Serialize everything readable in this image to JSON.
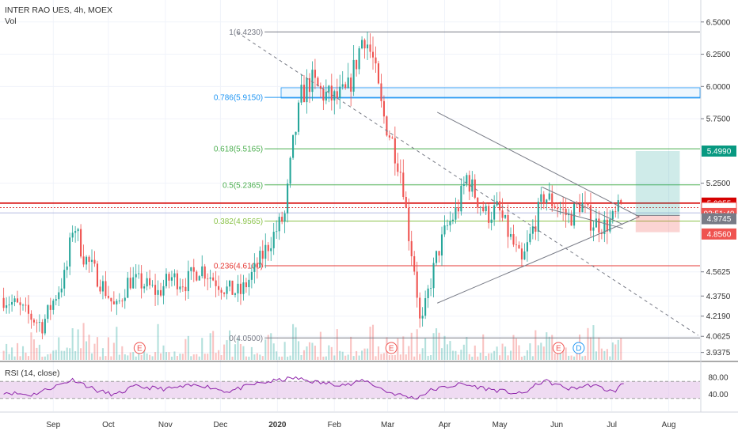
{
  "header": {
    "symbol_line": "INTER RAO UES, 4h, MOEX",
    "vol_label": "Vol"
  },
  "rsi": {
    "label": "RSI (14, close)"
  },
  "colors": {
    "up": "#26a69a",
    "down": "#ef5350",
    "rsi": "#8e24aa",
    "rsi_band": "#e1bee7",
    "grid": "#f0f3fa"
  },
  "chart_data": {
    "type": "candlestick",
    "y_axis": {
      "min": 3.88,
      "max": 6.56,
      "ticks": [
        "6.5000",
        "6.2500",
        "6.0000",
        "5.7500",
        "5.4990",
        "5.2500",
        "5.0955",
        "5.0570",
        "4.9745",
        "4.8560",
        "4.5625",
        "4.3750",
        "4.2190",
        "4.0625",
        "3.9375"
      ]
    },
    "x_axis": {
      "labels": [
        {
          "text": "Sep",
          "date": "2019-09-01"
        },
        {
          "text": "Oct",
          "date": "2019-10-01"
        },
        {
          "text": "Nov",
          "date": "2019-11-01"
        },
        {
          "text": "Dec",
          "date": "2019-12-01"
        },
        {
          "text": "2020",
          "date": "2020-01-01"
        },
        {
          "text": "Feb",
          "date": "2020-02-01"
        },
        {
          "text": "Mar",
          "date": "2020-03-01"
        },
        {
          "text": "Apr",
          "date": "2020-04-01"
        },
        {
          "text": "May",
          "date": "2020-05-01"
        },
        {
          "text": "Jun",
          "date": "2020-06-01"
        },
        {
          "text": "Jul",
          "date": "2020-07-01"
        },
        {
          "text": "Aug",
          "date": "2020-08-01"
        }
      ]
    },
    "price_path": [
      [
        "2019-08-05",
        4.36
      ],
      [
        "2019-08-12",
        4.3
      ],
      [
        "2019-08-19",
        4.22
      ],
      [
        "2019-08-26",
        4.15
      ],
      [
        "2019-09-03",
        4.4
      ],
      [
        "2019-09-08",
        4.55
      ],
      [
        "2019-09-12",
        4.96
      ],
      [
        "2019-09-17",
        4.7
      ],
      [
        "2019-09-24",
        4.55
      ],
      [
        "2019-10-01",
        4.38
      ],
      [
        "2019-10-05",
        4.26
      ],
      [
        "2019-10-12",
        4.5
      ],
      [
        "2019-10-20",
        4.47
      ],
      [
        "2019-10-28",
        4.4
      ],
      [
        "2019-11-04",
        4.52
      ],
      [
        "2019-11-12",
        4.48
      ],
      [
        "2019-11-20",
        4.6
      ],
      [
        "2019-11-28",
        4.5
      ],
      [
        "2019-12-05",
        4.42
      ],
      [
        "2019-12-12",
        4.4
      ],
      [
        "2019-12-20",
        4.58
      ],
      [
        "2019-12-28",
        4.8
      ],
      [
        "2020-01-05",
        5.0
      ],
      [
        "2020-01-09",
        5.5
      ],
      [
        "2020-01-14",
        5.92
      ],
      [
        "2020-01-19",
        6.05
      ],
      [
        "2020-01-25",
        5.95
      ],
      [
        "2020-02-01",
        5.9
      ],
      [
        "2020-02-08",
        5.95
      ],
      [
        "2020-02-13",
        6.2
      ],
      [
        "2020-02-17",
        6.42
      ],
      [
        "2020-02-22",
        6.2
      ],
      [
        "2020-02-27",
        5.8
      ],
      [
        "2020-03-04",
        5.55
      ],
      [
        "2020-03-09",
        5.3
      ],
      [
        "2020-03-12",
        4.9
      ],
      [
        "2020-03-16",
        4.55
      ],
      [
        "2020-03-19",
        4.1
      ],
      [
        "2020-03-23",
        4.4
      ],
      [
        "2020-03-28",
        4.7
      ],
      [
        "2020-04-02",
        4.9
      ],
      [
        "2020-04-08",
        5.05
      ],
      [
        "2020-04-13",
        5.3
      ],
      [
        "2020-04-18",
        5.15
      ],
      [
        "2020-04-24",
        5.0
      ],
      [
        "2020-04-30",
        5.05
      ],
      [
        "2020-05-06",
        4.85
      ],
      [
        "2020-05-13",
        4.62
      ],
      [
        "2020-05-18",
        4.85
      ],
      [
        "2020-05-25",
        5.15
      ],
      [
        "2020-06-01",
        5.08
      ],
      [
        "2020-06-08",
        4.98
      ],
      [
        "2020-06-14",
        5.1
      ],
      [
        "2020-06-20",
        4.95
      ],
      [
        "2020-06-27",
        4.92
      ],
      [
        "2020-07-02",
        4.97
      ],
      [
        "2020-07-06",
        5.07
      ]
    ],
    "fib_levels": [
      {
        "label": "1(6.4230)",
        "value": 6.423,
        "color": "#787b86"
      },
      {
        "label": "0.786(5.9150)",
        "value": 5.915,
        "color": "#2196f3"
      },
      {
        "label": "0.618(5.5165)",
        "value": 5.5165,
        "color": "#4caf50"
      },
      {
        "label": "0.5(5.2365)",
        "value": 5.2365,
        "color": "#4caf50"
      },
      {
        "label": "0.382(4.9565)",
        "value": 4.9565,
        "color": "#8bc34a"
      },
      {
        "label": "0.236(4.6100)",
        "value": 4.61,
        "color": "#e53935"
      },
      {
        "label": "0(4.0500)",
        "value": 4.05,
        "color": "#787b86"
      }
    ],
    "price_tags": [
      {
        "text": "5.4990",
        "value": 5.499,
        "bg": "#089981",
        "kind": "fill"
      },
      {
        "text": "5.0955",
        "value": 5.0955,
        "bg": "#d50000",
        "kind": "fill"
      },
      {
        "text": "5.0570",
        "value": 5.057,
        "bg": "#ffffff",
        "fg": "#ef5350",
        "kind": "outline"
      },
      {
        "text": "03:51:40",
        "value": 5.015,
        "bg": "#ef5350",
        "kind": "fill"
      },
      {
        "text": "4.9745",
        "value": 4.9745,
        "bg": "#787b86",
        "kind": "fill"
      },
      {
        "text": "4.8560",
        "value": 4.856,
        "bg": "#ef5350",
        "kind": "fill"
      }
    ],
    "position": {
      "start": "2020-07-14",
      "end": "2020-08-07",
      "entry": 5.0,
      "target": 5.499,
      "stop": 4.87
    },
    "event_markers": [
      {
        "text": "E",
        "date": "2019-10-18"
      },
      {
        "text": "E",
        "date": "2020-03-03"
      },
      {
        "text": "E",
        "date": "2020-06-02"
      },
      {
        "text": "D",
        "date": "2020-06-13"
      }
    ],
    "rsi_axis": {
      "ticks": [
        "80.00",
        "40.00"
      ],
      "band": [
        30,
        70
      ]
    },
    "rsi_path": [
      [
        "2019-08-05",
        45
      ],
      [
        "2019-08-20",
        38
      ],
      [
        "2019-09-03",
        60
      ],
      [
        "2019-09-12",
        75
      ],
      [
        "2019-09-25",
        48
      ],
      [
        "2019-10-05",
        38
      ],
      [
        "2019-10-15",
        58
      ],
      [
        "2019-11-01",
        52
      ],
      [
        "2019-11-20",
        62
      ],
      [
        "2019-12-05",
        46
      ],
      [
        "2019-12-20",
        64
      ],
      [
        "2020-01-10",
        78
      ],
      [
        "2020-01-25",
        66
      ],
      [
        "2020-02-10",
        62
      ],
      [
        "2020-02-17",
        74
      ],
      [
        "2020-03-01",
        45
      ],
      [
        "2020-03-16",
        30
      ],
      [
        "2020-03-25",
        50
      ],
      [
        "2020-04-10",
        64
      ],
      [
        "2020-04-25",
        52
      ],
      [
        "2020-05-13",
        40
      ],
      [
        "2020-05-25",
        72
      ],
      [
        "2020-06-08",
        52
      ],
      [
        "2020-06-20",
        62
      ],
      [
        "2020-07-02",
        45
      ],
      [
        "2020-07-08",
        68
      ]
    ]
  }
}
